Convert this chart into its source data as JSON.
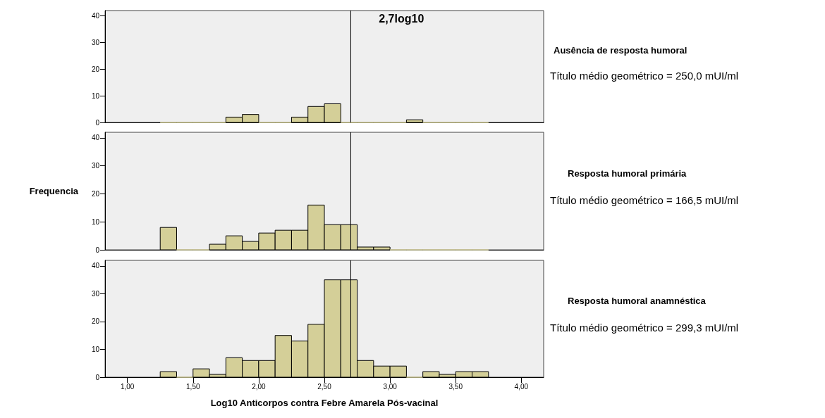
{
  "chart_data": [
    {
      "type": "histogram",
      "annotations": [
        "Ausência de resposta humoral",
        "Título médio geométrico = 250,0 mUI/ml"
      ],
      "bins": [
        1.25,
        1.375,
        1.5,
        1.625,
        1.75,
        1.875,
        2,
        2.125,
        2.25,
        2.375,
        2.5,
        2.625,
        2.75,
        2.875,
        3,
        3.125,
        3.25,
        3.375,
        3.5,
        3.625,
        3.75
      ],
      "values": [
        0,
        0,
        0,
        0,
        2,
        3,
        0,
        0,
        2,
        6,
        7,
        0,
        0,
        0,
        0,
        1,
        0,
        0,
        0,
        0
      ],
      "color": "#d4cf98",
      "xlim": [
        0.83,
        4.17
      ],
      "ylim": [
        0,
        42
      ],
      "yticks": [
        0,
        10,
        20,
        30,
        40
      ],
      "tick_labels": "y",
      "grid": false,
      "ref_lines": [
        {
          "axis": "x",
          "value": 2.7,
          "label": "2,7log10"
        }
      ]
    },
    {
      "type": "histogram",
      "annotations": [
        "Resposta humoral primária",
        "Título médio geométrico = 166,5 mUI/ml"
      ],
      "ylabel": "Frequencia",
      "bins": [
        1.25,
        1.375,
        1.5,
        1.625,
        1.75,
        1.875,
        2,
        2.125,
        2.25,
        2.375,
        2.5,
        2.625,
        2.75,
        2.875,
        3,
        3.125,
        3.25,
        3.375,
        3.5,
        3.625,
        3.75
      ],
      "values": [
        8,
        0,
        0,
        2,
        5,
        3,
        6,
        7,
        7,
        16,
        9,
        9,
        1,
        1,
        0,
        0,
        0,
        0,
        0,
        0
      ],
      "color": "#d4cf98",
      "xlim": [
        0.83,
        4.17
      ],
      "ylim": [
        0,
        42
      ],
      "yticks": [
        0,
        10,
        20,
        30,
        40
      ],
      "tick_labels": "y",
      "grid": false,
      "ref_lines": [
        {
          "axis": "x",
          "value": 2.7
        }
      ]
    },
    {
      "type": "histogram",
      "annotations": [
        "Resposta humoral anamnéstica",
        "Título médio geométrico = 299,3 mUI/ml"
      ],
      "xlabel": "Log10 Anticorpos contra Febre Amarela Pós-vacinal",
      "bins": [
        1.25,
        1.375,
        1.5,
        1.625,
        1.75,
        1.875,
        2,
        2.125,
        2.25,
        2.375,
        2.5,
        2.625,
        2.75,
        2.875,
        3,
        3.125,
        3.25,
        3.375,
        3.5,
        3.625,
        3.75
      ],
      "values": [
        2,
        0,
        3,
        1,
        7,
        6,
        6,
        15,
        13,
        19,
        35,
        35,
        6,
        4,
        4,
        0,
        2,
        1,
        2,
        2
      ],
      "color": "#d4cf98",
      "xlim": [
        0.83,
        4.17
      ],
      "xticks": [
        {
          "value": 1,
          "label": "1,00"
        },
        {
          "value": 1.5,
          "label": "1,50"
        },
        {
          "value": 2,
          "label": "2,00"
        },
        {
          "value": 2.5,
          "label": "2,50"
        },
        {
          "value": 3,
          "label": "3,00"
        },
        {
          "value": 3.5,
          "label": "3,50"
        },
        {
          "value": 4,
          "label": "4,00"
        }
      ],
      "ylim": [
        0,
        42
      ],
      "yticks": [
        0,
        10,
        20,
        30,
        40
      ],
      "grid": false,
      "ref_lines": [
        {
          "axis": "x",
          "value": 2.7
        }
      ]
    }
  ]
}
